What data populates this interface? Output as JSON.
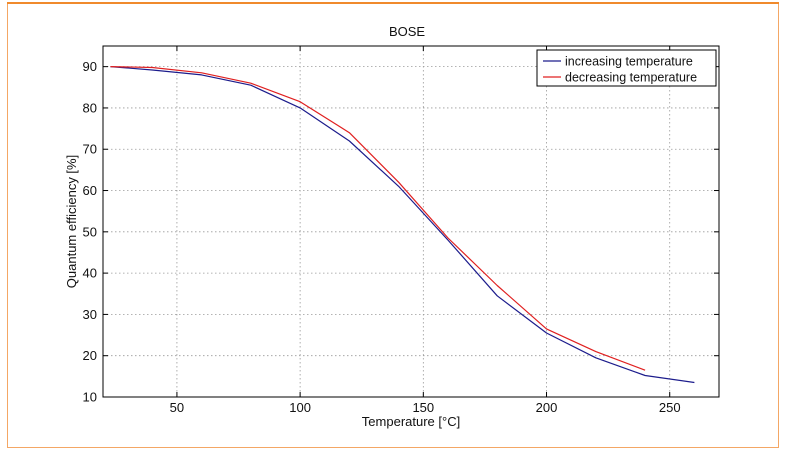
{
  "chart_data": {
    "type": "line",
    "title": "BOSE",
    "xlabel": "Temperature [°C]",
    "ylabel": "Quantum efficiency [%]",
    "xlim": [
      20,
      270
    ],
    "ylim": [
      10,
      95
    ],
    "xticks": [
      50,
      100,
      150,
      200,
      250
    ],
    "yticks": [
      10,
      20,
      30,
      40,
      50,
      60,
      70,
      80,
      90
    ],
    "grid": true,
    "legend_position": "top-right",
    "series": [
      {
        "name": "increasing temperature",
        "color": "#1c1c8c",
        "x": [
          23,
          40,
          60,
          80,
          100,
          120,
          140,
          160,
          180,
          200,
          220,
          240,
          260
        ],
        "y": [
          90,
          89.2,
          88,
          85.5,
          80,
          72,
          61,
          48,
          34.5,
          25.5,
          19.5,
          15.2,
          13.5
        ]
      },
      {
        "name": "decreasing temperature",
        "color": "#e02020",
        "x": [
          23,
          40,
          60,
          80,
          100,
          120,
          140,
          160,
          180,
          200,
          220,
          240
        ],
        "y": [
          90,
          89.8,
          88.5,
          86,
          81.5,
          74,
          62,
          48.5,
          37,
          26.5,
          21,
          16.5
        ]
      }
    ]
  }
}
